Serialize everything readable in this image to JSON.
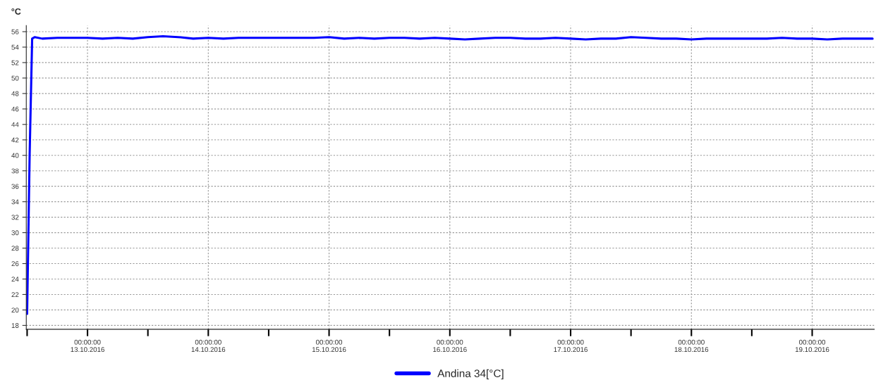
{
  "chart_data": {
    "type": "line",
    "ylabel": "°C",
    "x": [
      "2016-10-12T12:00",
      "2016-10-12T12:30",
      "2016-10-12T13:00",
      "2016-10-12T13:30",
      "2016-10-12T15:00",
      "2016-10-12T18:00",
      "2016-10-12T21:00",
      "2016-10-13T00:00",
      "2016-10-13T03:00",
      "2016-10-13T06:00",
      "2016-10-13T09:00",
      "2016-10-13T12:00",
      "2016-10-13T15:00",
      "2016-10-13T18:00",
      "2016-10-13T21:00",
      "2016-10-14T00:00",
      "2016-10-14T03:00",
      "2016-10-14T06:00",
      "2016-10-14T09:00",
      "2016-10-14T12:00",
      "2016-10-14T15:00",
      "2016-10-14T18:00",
      "2016-10-14T21:00",
      "2016-10-15T00:00",
      "2016-10-15T03:00",
      "2016-10-15T06:00",
      "2016-10-15T09:00",
      "2016-10-15T12:00",
      "2016-10-15T15:00",
      "2016-10-15T18:00",
      "2016-10-15T21:00",
      "2016-10-16T00:00",
      "2016-10-16T03:00",
      "2016-10-16T06:00",
      "2016-10-16T09:00",
      "2016-10-16T12:00",
      "2016-10-16T15:00",
      "2016-10-16T18:00",
      "2016-10-16T21:00",
      "2016-10-17T00:00",
      "2016-10-17T03:00",
      "2016-10-17T06:00",
      "2016-10-17T09:00",
      "2016-10-17T12:00",
      "2016-10-17T15:00",
      "2016-10-17T18:00",
      "2016-10-17T21:00",
      "2016-10-18T00:00",
      "2016-10-18T03:00",
      "2016-10-18T06:00",
      "2016-10-18T09:00",
      "2016-10-18T12:00",
      "2016-10-18T15:00",
      "2016-10-18T18:00",
      "2016-10-18T21:00",
      "2016-10-19T00:00",
      "2016-10-19T03:00",
      "2016-10-19T06:00",
      "2016-10-19T09:00",
      "2016-10-19T12:00"
    ],
    "series": [
      {
        "name": "Andina 34[°C]",
        "color": "#0000ff",
        "values": [
          19.5,
          40,
          55.1,
          55.3,
          55.1,
          55.2,
          55.2,
          55.2,
          55.1,
          55.2,
          55.1,
          55.3,
          55.4,
          55.3,
          55.1,
          55.2,
          55.1,
          55.2,
          55.2,
          55.2,
          55.2,
          55.2,
          55.2,
          55.3,
          55.1,
          55.2,
          55.1,
          55.2,
          55.2,
          55.1,
          55.2,
          55.1,
          55.0,
          55.1,
          55.2,
          55.2,
          55.1,
          55.1,
          55.2,
          55.1,
          55.0,
          55.1,
          55.1,
          55.3,
          55.2,
          55.1,
          55.1,
          55.0,
          55.1,
          55.1,
          55.1,
          55.1,
          55.1,
          55.2,
          55.1,
          55.1,
          55.0,
          55.1,
          55.1,
          55.1
        ]
      }
    ],
    "xlim": [
      "2016-10-12T11:50",
      "2016-10-19T12:20"
    ],
    "xticks": [
      {
        "value": "2016-10-12T12:00",
        "label": null
      },
      {
        "value": "2016-10-13T00:00",
        "label": "00:00:00\n13.10.2016"
      },
      {
        "value": "2016-10-13T12:00",
        "label": null
      },
      {
        "value": "2016-10-14T00:00",
        "label": "00:00:00\n14.10.2016"
      },
      {
        "value": "2016-10-14T12:00",
        "label": null
      },
      {
        "value": "2016-10-15T00:00",
        "label": "00:00:00\n15.10.2016"
      },
      {
        "value": "2016-10-15T12:00",
        "label": null
      },
      {
        "value": "2016-10-16T00:00",
        "label": "00:00:00\n16.10.2016"
      },
      {
        "value": "2016-10-16T12:00",
        "label": null
      },
      {
        "value": "2016-10-17T00:00",
        "label": "00:00:00\n17.10.2016"
      },
      {
        "value": "2016-10-17T12:00",
        "label": null
      },
      {
        "value": "2016-10-18T00:00",
        "label": "00:00:00\n18.10.2016"
      },
      {
        "value": "2016-10-18T12:00",
        "label": null
      },
      {
        "value": "2016-10-19T00:00",
        "label": "00:00:00\n19.10.2016"
      }
    ],
    "ylim": [
      17.5,
      56.8
    ],
    "yticks": [
      18,
      20,
      22,
      24,
      26,
      28,
      30,
      32,
      34,
      36,
      38,
      40,
      42,
      44,
      46,
      48,
      50,
      52,
      54,
      56
    ],
    "grid": true,
    "legend": "bottom",
    "line_style": "solid",
    "marker": "none"
  }
}
